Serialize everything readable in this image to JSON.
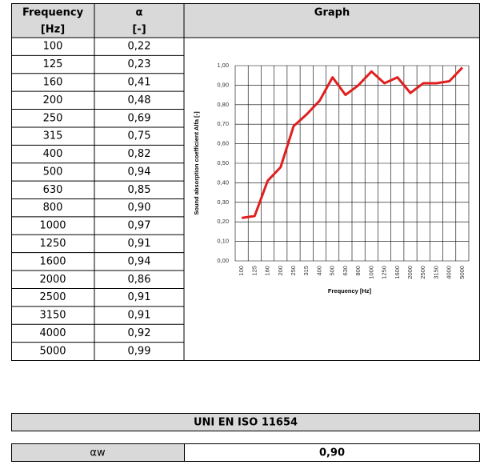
{
  "headers": {
    "frequency": "Frequency",
    "frequency_unit": "[Hz]",
    "alpha": "α",
    "alpha_unit": "[-]",
    "graph": "Graph"
  },
  "chart_data": {
    "type": "line",
    "y_label": "Sound absorption coefficient Alfa [-]",
    "x_label": "Frequency [Hz]",
    "categories": [
      "100",
      "125",
      "160",
      "200",
      "250",
      "315",
      "400",
      "500",
      "630",
      "800",
      "1000",
      "1250",
      "1600",
      "2000",
      "2500",
      "3150",
      "4000",
      "5000"
    ],
    "values": [
      0.22,
      0.23,
      0.41,
      0.48,
      0.69,
      0.75,
      0.82,
      0.94,
      0.85,
      0.9,
      0.97,
      0.91,
      0.94,
      0.86,
      0.91,
      0.91,
      0.92,
      0.99
    ],
    "value_labels": [
      "0,22",
      "0,23",
      "0,41",
      "0,48",
      "0,69",
      "0,75",
      "0,82",
      "0,94",
      "0,85",
      "0,90",
      "0,97",
      "0,91",
      "0,94",
      "0,86",
      "0,91",
      "0,91",
      "0,92",
      "0,99"
    ],
    "color": "#e01f1f",
    "ylim": [
      0,
      1
    ],
    "yticks": [
      {
        "value": 0,
        "label": "0,00"
      },
      {
        "value": 0.1,
        "label": "0,10"
      },
      {
        "value": 0.2,
        "label": "0,20"
      },
      {
        "value": 0.3,
        "label": "0,30"
      },
      {
        "value": 0.4,
        "label": "0,40"
      },
      {
        "value": 0.5,
        "label": "0,50"
      },
      {
        "value": 0.6,
        "label": "0,60"
      },
      {
        "value": 0.7,
        "label": "0,70"
      },
      {
        "value": 0.8,
        "label": "0,80"
      },
      {
        "value": 0.9,
        "label": "0,90"
      },
      {
        "value": 1,
        "label": "1,00"
      }
    ],
    "grid": true
  },
  "rating": {
    "title": "UNI EN ISO 11654",
    "label": "αw",
    "value": "0,90"
  }
}
